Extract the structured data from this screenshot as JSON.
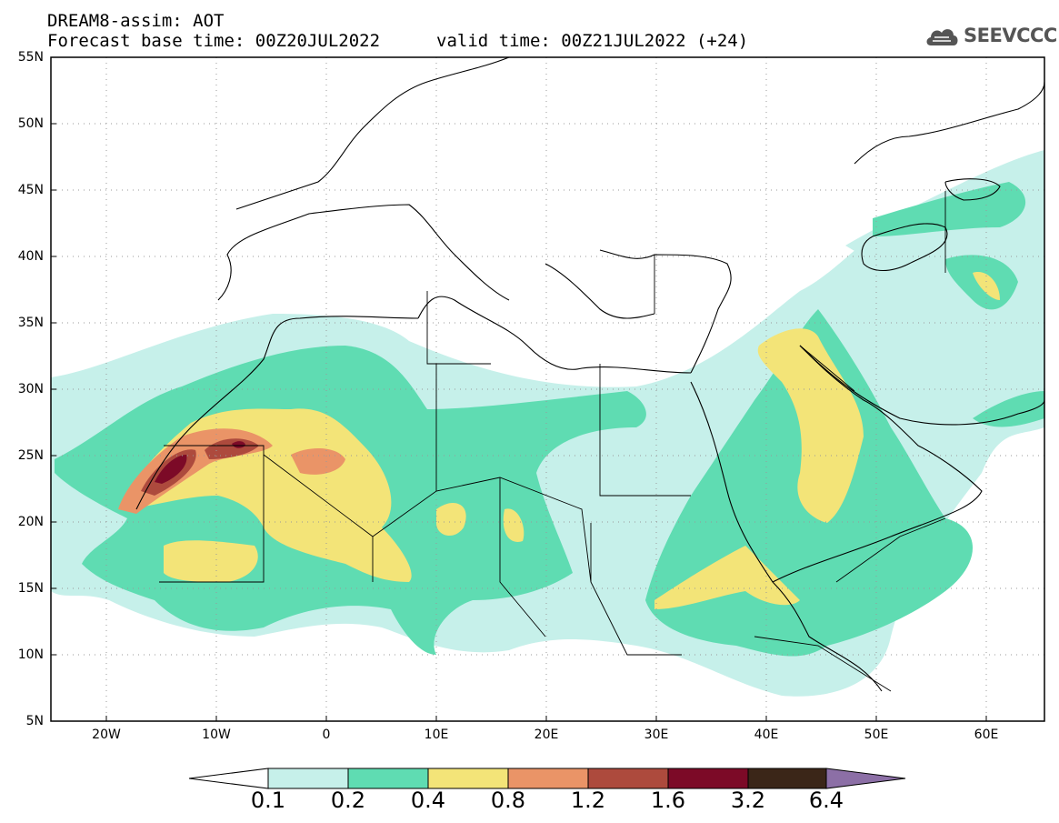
{
  "header": {
    "model": "DREAM8-assim: AOT",
    "base_time": "Forecast base time: 00Z20JUL2022",
    "valid_time": "valid time: 00Z21JUL2022 (+24)"
  },
  "logo": {
    "text": "SEEVCCC",
    "icon": "cloud-icon"
  },
  "map": {
    "lat_labels": [
      "55N",
      "50N",
      "45N",
      "40N",
      "35N",
      "30N",
      "25N",
      "20N",
      "15N",
      "10N",
      "5N"
    ],
    "lon_labels": [
      "20W",
      "10W",
      "0",
      "10E",
      "20E",
      "30E",
      "40E",
      "50E",
      "60E"
    ],
    "lat_range": [
      5,
      55
    ],
    "lon_range": [
      -25,
      65
    ],
    "grid": "dotted"
  },
  "colorbar": {
    "levels": [
      "0.1",
      "0.2",
      "0.4",
      "0.8",
      "1.2",
      "1.6",
      "3.2",
      "6.4"
    ],
    "colors": [
      "#c6f0ea",
      "#5fdcb2",
      "#f3e478",
      "#ea9467",
      "#ad4a3d",
      "#7c0a27",
      "#3b2618",
      "#8c6fa6"
    ],
    "under_color": "#ffffff"
  }
}
